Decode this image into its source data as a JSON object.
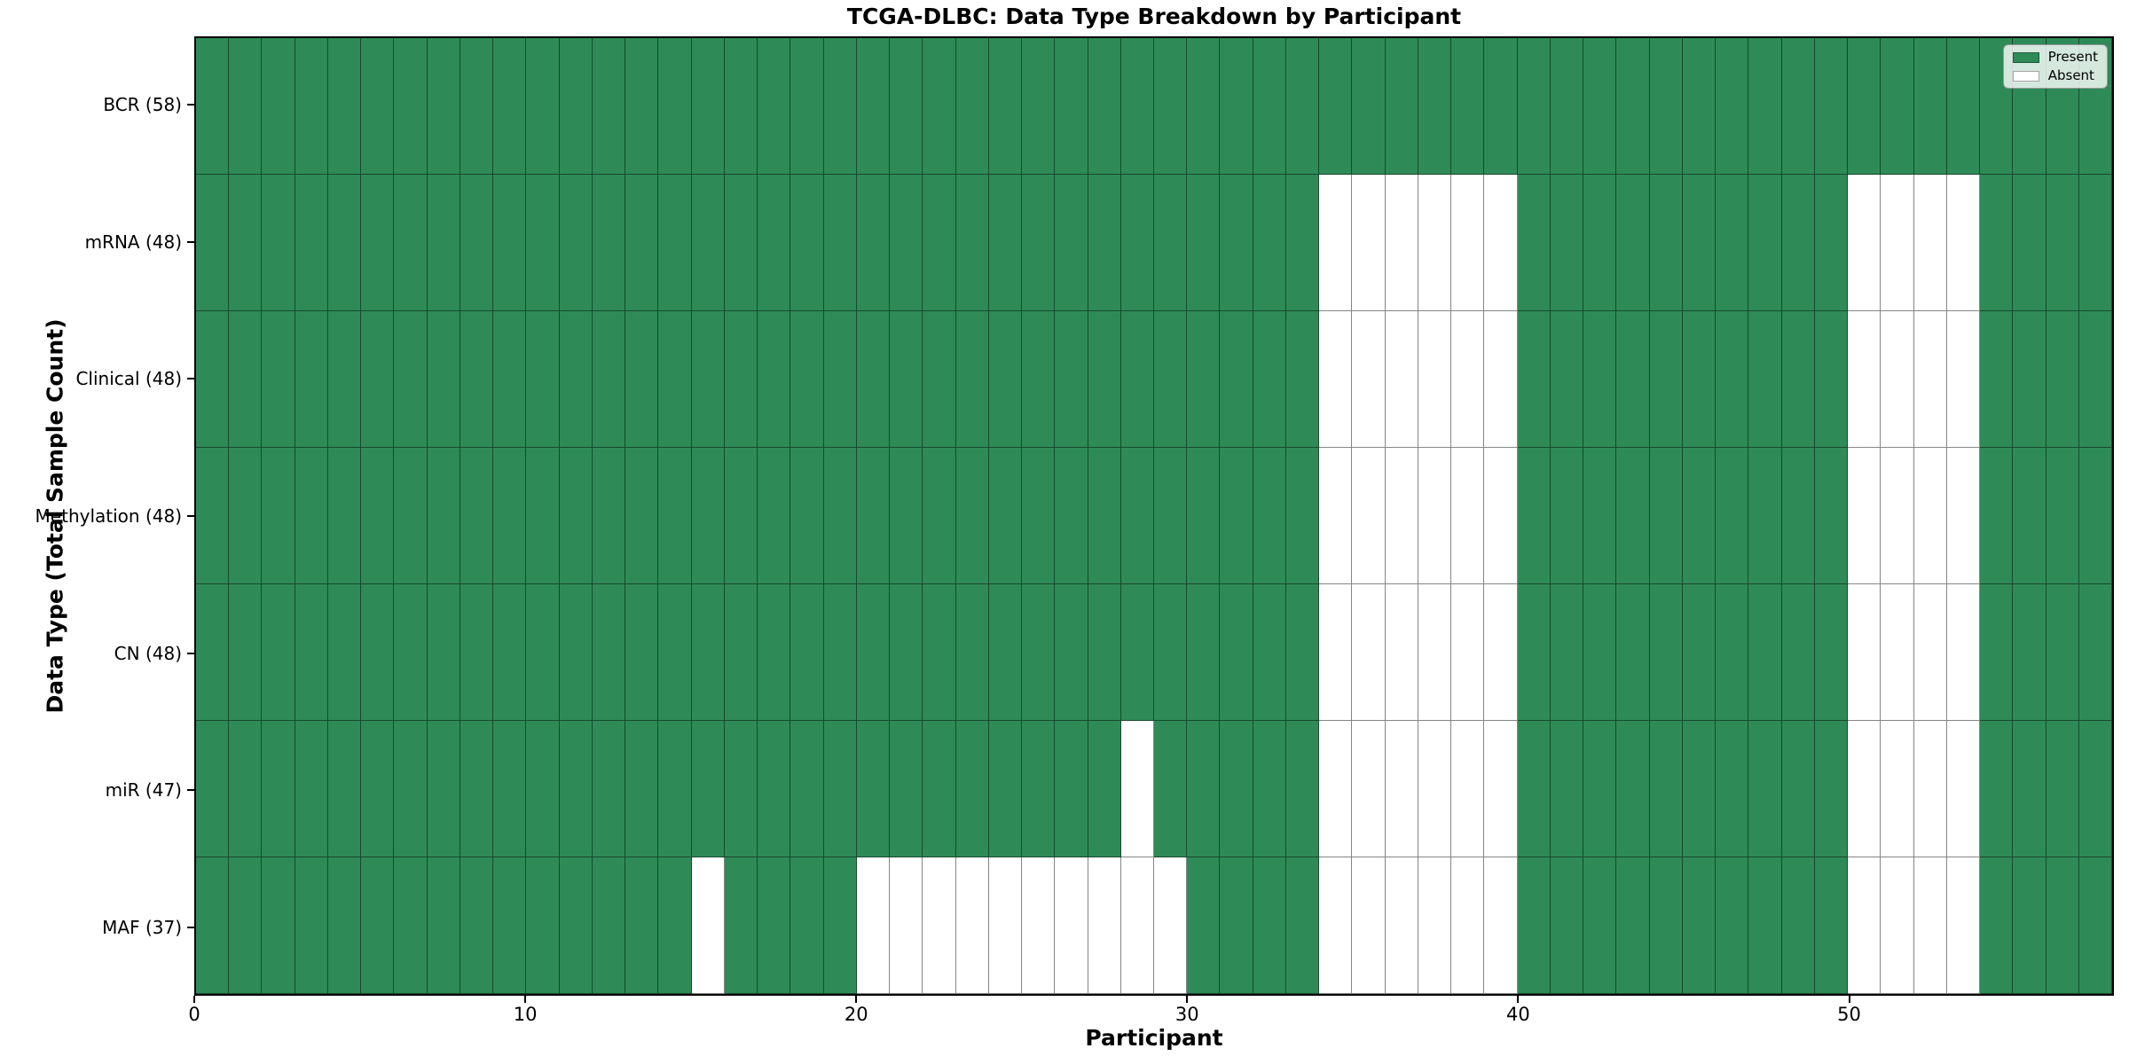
{
  "chart_data": {
    "type": "heatmap",
    "title": "TCGA-DLBC: Data Type Breakdown by Participant",
    "xlabel": "Participant",
    "ylabel": "Data Type (Total Sample Count)",
    "n_participants": 58,
    "x_ticks": [
      0,
      10,
      20,
      30,
      40,
      50
    ],
    "rows": [
      {
        "label": "BCR (58)",
        "total": 58,
        "absent": []
      },
      {
        "label": "mRNA (48)",
        "total": 48,
        "absent": [
          34,
          35,
          36,
          37,
          38,
          39,
          50,
          51,
          52,
          53
        ]
      },
      {
        "label": "Clinical (48)",
        "total": 48,
        "absent": [
          34,
          35,
          36,
          37,
          38,
          39,
          50,
          51,
          52,
          53
        ]
      },
      {
        "label": "Methylation (48)",
        "total": 48,
        "absent": [
          34,
          35,
          36,
          37,
          38,
          39,
          50,
          51,
          52,
          53
        ]
      },
      {
        "label": "CN (48)",
        "total": 48,
        "absent": [
          34,
          35,
          36,
          37,
          38,
          39,
          50,
          51,
          52,
          53
        ]
      },
      {
        "label": "miR (47)",
        "total": 47,
        "absent": [
          28,
          34,
          35,
          36,
          37,
          38,
          39,
          50,
          51,
          52,
          53
        ]
      },
      {
        "label": "MAF (37)",
        "total": 37,
        "absent": [
          15,
          20,
          21,
          22,
          23,
          24,
          25,
          26,
          27,
          28,
          29,
          34,
          35,
          36,
          37,
          38,
          39,
          50,
          51,
          52,
          53
        ]
      }
    ],
    "legend": {
      "position": "upper right",
      "entries": [
        {
          "label": "Present",
          "color": "#2e8b57"
        },
        {
          "label": "Absent",
          "color": "#ffffff"
        }
      ]
    },
    "colors": {
      "present": "#2e8b57",
      "absent": "#ffffff",
      "grid_edge": "rgba(0,0,0,0.48)",
      "spine": "#000000"
    },
    "layout": {
      "grid": true,
      "cells_edge_aligned": true
    }
  }
}
